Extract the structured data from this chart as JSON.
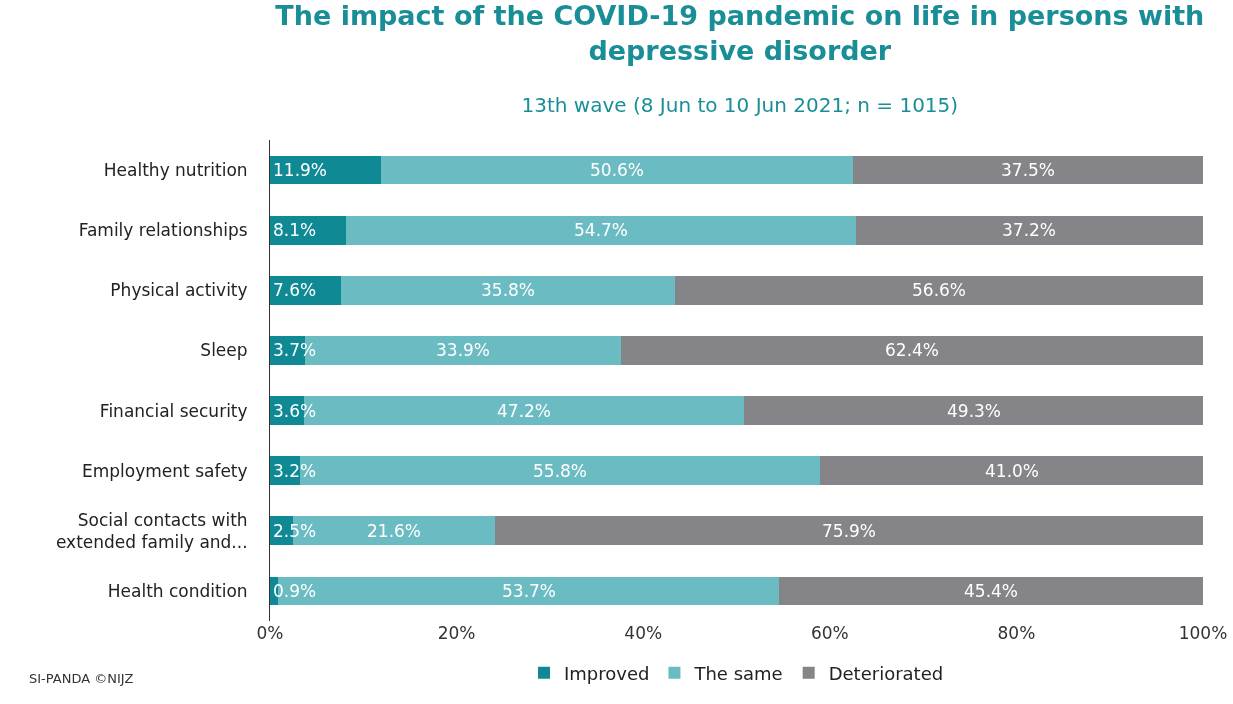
{
  "chart_data": {
    "type": "bar",
    "orientation": "horizontal",
    "stacked": true,
    "title": "The impact of the COVID-19 pandemic on life in persons with depressive disorder",
    "subtitle": "13th wave (8 Jun to 10 Jun 2021; n = 1015)",
    "categories": [
      "Healthy nutrition",
      "Family relationships",
      "Physical activity",
      "Sleep",
      "Financial security",
      "Employment safety",
      "Social contacts with extended family and...",
      "Health condition"
    ],
    "series": [
      {
        "name": "Improved",
        "color": "#0f8a94",
        "values": [
          11.9,
          8.1,
          7.6,
          3.7,
          3.6,
          3.2,
          2.5,
          0.9
        ],
        "value_labels": [
          "11.9%",
          "8.1%",
          "7.6%",
          "3.7%",
          "3.6%",
          "3.2%",
          "2.5%",
          "0.9%"
        ]
      },
      {
        "name": "The same",
        "color": "#6bbcc2",
        "values": [
          50.6,
          54.7,
          35.8,
          33.9,
          47.2,
          55.8,
          21.6,
          53.7
        ],
        "value_labels": [
          "50.6%",
          "54.7%",
          "35.8%",
          "33.9%",
          "47.2%",
          "55.8%",
          "21.6%",
          "53.7%"
        ]
      },
      {
        "name": "Deteriorated",
        "color": "#858589",
        "values": [
          37.5,
          37.2,
          56.6,
          62.4,
          49.3,
          41.0,
          75.9,
          45.4
        ],
        "value_labels": [
          "37.5%",
          "37.2%",
          "56.6%",
          "62.4%",
          "49.3%",
          "41.0%",
          "75.9%",
          "45.4%"
        ]
      }
    ],
    "xlim": [
      0,
      100
    ],
    "xticks": [
      {
        "value": 0,
        "label": "0%"
      },
      {
        "value": 20,
        "label": "20%"
      },
      {
        "value": 40,
        "label": "40%"
      },
      {
        "value": 60,
        "label": "60%"
      },
      {
        "value": 80,
        "label": "80%"
      },
      {
        "value": 100,
        "label": "100%"
      }
    ],
    "legend": "bottom",
    "annotations": [
      "SI-PANDA ©NIJZ"
    ]
  }
}
